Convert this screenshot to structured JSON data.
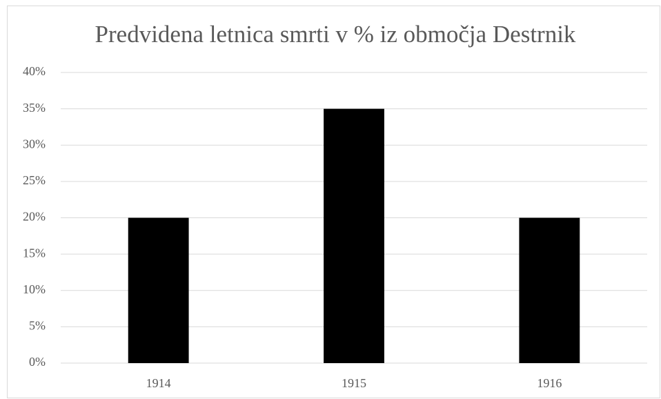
{
  "chart_data": {
    "type": "bar",
    "title": "Predvidena letnica smrti v % iz območja Destrnik",
    "categories": [
      "1914",
      "1915",
      "1916"
    ],
    "values": [
      20,
      35,
      20
    ],
    "color": "#000000",
    "ylim": [
      0,
      40
    ],
    "yticks": [
      {
        "value": 0,
        "label": "0%"
      },
      {
        "value": 5,
        "label": "5%"
      },
      {
        "value": 10,
        "label": "10%"
      },
      {
        "value": 15,
        "label": "15%"
      },
      {
        "value": 20,
        "label": "20%"
      },
      {
        "value": 25,
        "label": "25%"
      },
      {
        "value": 30,
        "label": "30%"
      },
      {
        "value": 35,
        "label": "35%"
      },
      {
        "value": 40,
        "label": "40%"
      }
    ],
    "grid": true
  }
}
